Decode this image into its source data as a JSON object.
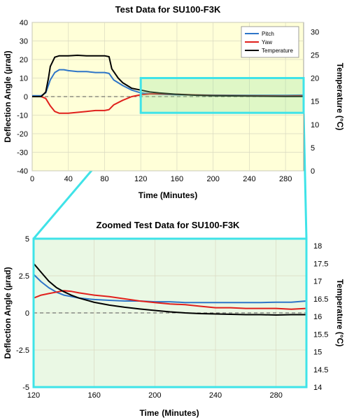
{
  "colors": {
    "pitch": "#2e75c8",
    "yaw": "#e0201c",
    "temperature": "#000000",
    "highlight": "#3fe3e8",
    "top_bg": "#ffffd8",
    "zoom_bg": "#eaf8e4",
    "grid": "#d9d9c0"
  },
  "chart_data": [
    {
      "type": "line",
      "title": "Test Data for SU100-F3K",
      "xlabel": "Time (Minutes)",
      "ylabel": "Deflection Angle (µrad)",
      "y2label": "Temperature (°C)",
      "xlim": [
        0,
        300
      ],
      "ylim": [
        -40,
        40
      ],
      "y2lim": [
        0,
        32
      ],
      "xticks": [
        0,
        40,
        80,
        120,
        160,
        200,
        240,
        280
      ],
      "yticks": [
        -40,
        -30,
        -20,
        -10,
        0,
        10,
        20,
        30,
        40
      ],
      "y2ticks": [
        0,
        5,
        10,
        15,
        20,
        25,
        30
      ],
      "grid": true,
      "legend": "top-right",
      "zoom_box": {
        "x": [
          120,
          300
        ],
        "y2": [
          12.5,
          20
        ]
      },
      "series": [
        {
          "name": "Pitch",
          "axis": "left",
          "x": [
            0,
            10,
            15,
            20,
            25,
            30,
            35,
            40,
            50,
            60,
            70,
            80,
            85,
            90,
            100,
            110,
            120,
            130,
            140,
            160,
            180,
            200,
            240,
            280,
            300
          ],
          "y": [
            0.5,
            0.5,
            2,
            9,
            13,
            14.5,
            14.5,
            14,
            13.5,
            13.5,
            13,
            13,
            12.5,
            9,
            6,
            3.5,
            2,
            1.5,
            1.3,
            1,
            0.9,
            0.8,
            0.7,
            0.7,
            0.8
          ]
        },
        {
          "name": "Yaw",
          "axis": "left",
          "x": [
            0,
            10,
            15,
            20,
            25,
            30,
            35,
            40,
            50,
            60,
            70,
            80,
            85,
            90,
            100,
            110,
            120,
            130,
            140,
            160,
            180,
            200,
            240,
            280,
            300
          ],
          "y": [
            0,
            0,
            -1,
            -5,
            -8,
            -9,
            -9,
            -9,
            -8.5,
            -8,
            -7.5,
            -7.5,
            -7,
            -4.5,
            -2,
            0,
            1,
            1.4,
            1.5,
            1.3,
            0.9,
            0.6,
            0.4,
            0.3,
            0.4
          ]
        },
        {
          "name": "Temperature",
          "axis": "right",
          "x": [
            0,
            10,
            15,
            18,
            20,
            25,
            30,
            40,
            50,
            60,
            70,
            80,
            85,
            88,
            95,
            100,
            110,
            120,
            130,
            140,
            160,
            180,
            200,
            240,
            280,
            300
          ],
          "y": [
            16,
            16,
            17,
            20,
            22.5,
            24.5,
            24.8,
            24.8,
            24.9,
            24.8,
            24.8,
            24.8,
            24.6,
            22,
            20,
            19,
            17.8,
            17.4,
            17,
            16.8,
            16.5,
            16.3,
            16.2,
            16.1,
            16.05,
            16.05
          ]
        }
      ]
    },
    {
      "type": "line",
      "title": "Zoomed Test Data for SU100-F3K",
      "xlabel": "(Minutes)",
      "xlabel_prefix": "Time",
      "ylabel": "Deflection Angle (µrad)",
      "y2label": "Temperature (°C)",
      "xlim": [
        120,
        300
      ],
      "ylim": [
        -5,
        5
      ],
      "y2lim": [
        14,
        18.2
      ],
      "xticks": [
        120,
        160,
        200,
        240,
        280
      ],
      "yticks": [
        -5,
        -2.5,
        0,
        2.5,
        5
      ],
      "y2ticks": [
        14,
        14.5,
        15,
        15.5,
        16,
        16.5,
        17,
        17.5,
        18
      ],
      "grid": true,
      "series": [
        {
          "name": "Pitch",
          "axis": "left",
          "x": [
            120,
            125,
            130,
            135,
            140,
            145,
            150,
            155,
            160,
            170,
            180,
            190,
            200,
            210,
            220,
            230,
            240,
            250,
            260,
            270,
            280,
            290,
            300
          ],
          "y": [
            2.6,
            2.1,
            1.7,
            1.4,
            1.2,
            1.1,
            1.0,
            0.95,
            0.9,
            0.85,
            0.8,
            0.8,
            0.75,
            0.75,
            0.7,
            0.7,
            0.7,
            0.7,
            0.7,
            0.7,
            0.72,
            0.72,
            0.8
          ]
        },
        {
          "name": "Yaw",
          "axis": "left",
          "x": [
            120,
            125,
            130,
            135,
            140,
            145,
            150,
            160,
            170,
            180,
            190,
            200,
            210,
            220,
            230,
            240,
            250,
            260,
            270,
            280,
            290,
            300
          ],
          "y": [
            1.0,
            1.2,
            1.3,
            1.4,
            1.5,
            1.45,
            1.35,
            1.2,
            1.1,
            0.95,
            0.8,
            0.7,
            0.6,
            0.55,
            0.45,
            0.35,
            0.35,
            0.3,
            0.3,
            0.3,
            0.25,
            0.3
          ]
        },
        {
          "name": "Temperature",
          "axis": "right",
          "x": [
            120,
            125,
            130,
            135,
            140,
            145,
            150,
            160,
            170,
            180,
            190,
            200,
            210,
            220,
            230,
            240,
            250,
            260,
            270,
            280,
            290,
            300
          ],
          "y": [
            17.5,
            17.25,
            17.0,
            16.82,
            16.7,
            16.6,
            16.52,
            16.4,
            16.32,
            16.26,
            16.21,
            16.17,
            16.13,
            16.1,
            16.08,
            16.07,
            16.06,
            16.05,
            16.05,
            16.04,
            16.05,
            16.05
          ]
        }
      ]
    }
  ]
}
